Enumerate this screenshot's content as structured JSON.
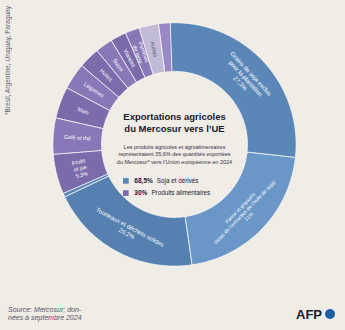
{
  "chart_data": {
    "type": "donut",
    "title": "Exportations agricoles\ndu Mercosur vers l’UE",
    "subtitle": "Les produits agricoles et agroalimentaires\nreprésentaient 35,6% des quantités exportées\ndu Mercosur* vers l’Union européenne en 2024",
    "categories": [
      "Grains de soja exclus\npour la plantation\n27,3%",
      "Farine et granulés\n(issus de l’extraction de l’huile de soja)\n21%",
      "Tourteaux et déchets solides\n20,2%",
      null,
      "Fruits\net jus\n5,3%",
      "Café et thé",
      "Maïs",
      "Légumes",
      "Huiles",
      "Sucre",
      "Viandes",
      "Pommes\nde terre",
      "Autres",
      null
    ],
    "values": [
      27.3,
      21.0,
      20.2,
      0.5,
      5.3,
      4.8,
      4.2,
      3.5,
      2.8,
      2.3,
      2.1,
      1.9,
      2.6,
      1.5
    ],
    "colors": [
      "#5b87b8",
      "#6b97c8",
      "#5580b0",
      "#5b87b8",
      "#7b6baa",
      "#8878b8",
      "#7b6baa",
      "#8878b8",
      "#7b6baa",
      "#8878b8",
      "#7b6baa",
      "#8878b8",
      "#c2bbd8",
      "#9988c4"
    ],
    "label_colors": [
      "#ffffff",
      "#ffffff",
      "#ffffff",
      "#ffffff",
      "#ffffff",
      "#ffffff",
      "#ffffff",
      "#ffffff",
      "#ffffff",
      "#ffffff",
      "#ffffff",
      "#ffffff",
      "#555566",
      "#ffffff"
    ],
    "key": [
      {
        "label": "Soja et dérivés",
        "value": 68.5,
        "value_label": "68,5%",
        "color": "#5b87b8"
      },
      {
        "label": "Produits alimentaires",
        "value": 30,
        "value_label": "30%",
        "color": "#7b6baa"
      }
    ],
    "source": "Source: Mercosur; don-\nnées à septembre 2024",
    "footnote": "*Brésil, Argentine, Uruguay, Paraguay",
    "logo": {
      "text": "AFP",
      "color": "#1a5fa8"
    },
    "background": "#f0ece6"
  }
}
